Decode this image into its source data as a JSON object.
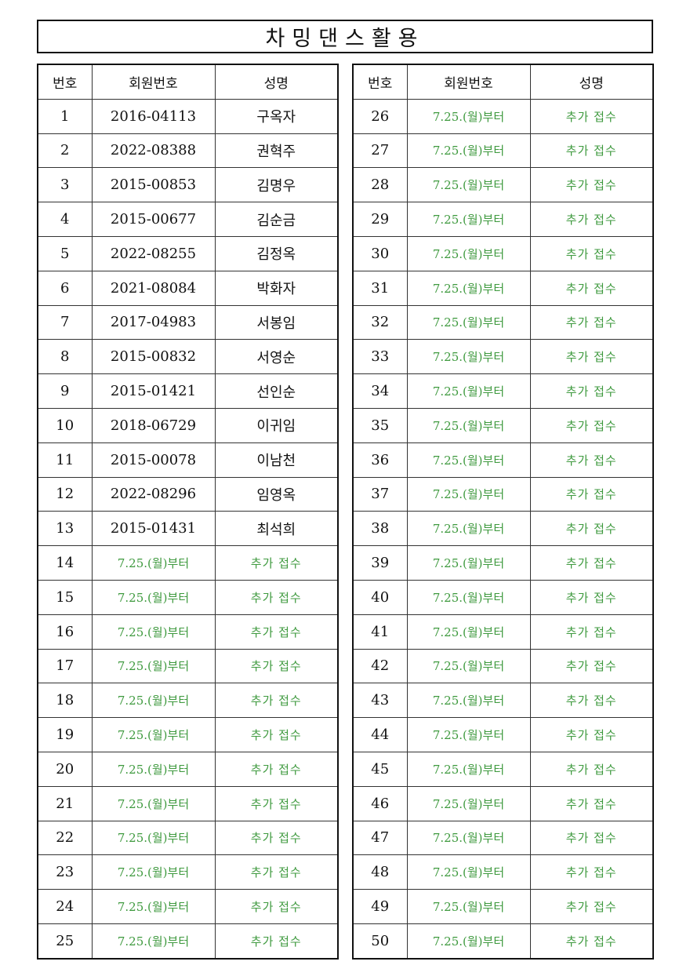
{
  "title": "차밍댄스활용",
  "colors": {
    "pending_text": "#3f9a3f",
    "border": "#111111"
  },
  "headers": {
    "no": "번호",
    "member_id": "회원번호",
    "name": "성명"
  },
  "left_rows": [
    {
      "no": "1",
      "member_id": "2016-04113",
      "name": "구옥자"
    },
    {
      "no": "2",
      "member_id": "2022-08388",
      "name": "권혁주"
    },
    {
      "no": "3",
      "member_id": "2015-00853",
      "name": "김명우"
    },
    {
      "no": "4",
      "member_id": "2015-00677",
      "name": "김순금"
    },
    {
      "no": "5",
      "member_id": "2022-08255",
      "name": "김정옥"
    },
    {
      "no": "6",
      "member_id": "2021-08084",
      "name": "박화자"
    },
    {
      "no": "7",
      "member_id": "2017-04983",
      "name": "서봉임"
    },
    {
      "no": "8",
      "member_id": "2015-00832",
      "name": "서영순"
    },
    {
      "no": "9",
      "member_id": "2015-01421",
      "name": "선인순"
    },
    {
      "no": "10",
      "member_id": "2018-06729",
      "name": "이귀임"
    },
    {
      "no": "11",
      "member_id": "2015-00078",
      "name": "이남천"
    },
    {
      "no": "12",
      "member_id": "2022-08296",
      "name": "임영옥"
    },
    {
      "no": "13",
      "member_id": "2015-01431",
      "name": "최석희"
    },
    {
      "no": "14",
      "member_id": "7.25.(월)부터",
      "name": "추가 접수",
      "pending": true
    },
    {
      "no": "15",
      "member_id": "7.25.(월)부터",
      "name": "추가 접수",
      "pending": true
    },
    {
      "no": "16",
      "member_id": "7.25.(월)부터",
      "name": "추가 접수",
      "pending": true
    },
    {
      "no": "17",
      "member_id": "7.25.(월)부터",
      "name": "추가 접수",
      "pending": true
    },
    {
      "no": "18",
      "member_id": "7.25.(월)부터",
      "name": "추가 접수",
      "pending": true
    },
    {
      "no": "19",
      "member_id": "7.25.(월)부터",
      "name": "추가 접수",
      "pending": true
    },
    {
      "no": "20",
      "member_id": "7.25.(월)부터",
      "name": "추가 접수",
      "pending": true
    },
    {
      "no": "21",
      "member_id": "7.25.(월)부터",
      "name": "추가 접수",
      "pending": true
    },
    {
      "no": "22",
      "member_id": "7.25.(월)부터",
      "name": "추가 접수",
      "pending": true
    },
    {
      "no": "23",
      "member_id": "7.25.(월)부터",
      "name": "추가 접수",
      "pending": true
    },
    {
      "no": "24",
      "member_id": "7.25.(월)부터",
      "name": "추가 접수",
      "pending": true
    },
    {
      "no": "25",
      "member_id": "7.25.(월)부터",
      "name": "추가 접수",
      "pending": true
    }
  ],
  "right_rows": [
    {
      "no": "26",
      "member_id": "7.25.(월)부터",
      "name": "추가 접수",
      "pending": true
    },
    {
      "no": "27",
      "member_id": "7.25.(월)부터",
      "name": "추가 접수",
      "pending": true
    },
    {
      "no": "28",
      "member_id": "7.25.(월)부터",
      "name": "추가 접수",
      "pending": true
    },
    {
      "no": "29",
      "member_id": "7.25.(월)부터",
      "name": "추가 접수",
      "pending": true
    },
    {
      "no": "30",
      "member_id": "7.25.(월)부터",
      "name": "추가 접수",
      "pending": true
    },
    {
      "no": "31",
      "member_id": "7.25.(월)부터",
      "name": "추가 접수",
      "pending": true
    },
    {
      "no": "32",
      "member_id": "7.25.(월)부터",
      "name": "추가 접수",
      "pending": true
    },
    {
      "no": "33",
      "member_id": "7.25.(월)부터",
      "name": "추가 접수",
      "pending": true
    },
    {
      "no": "34",
      "member_id": "7.25.(월)부터",
      "name": "추가 접수",
      "pending": true
    },
    {
      "no": "35",
      "member_id": "7.25.(월)부터",
      "name": "추가 접수",
      "pending": true
    },
    {
      "no": "36",
      "member_id": "7.25.(월)부터",
      "name": "추가 접수",
      "pending": true
    },
    {
      "no": "37",
      "member_id": "7.25.(월)부터",
      "name": "추가 접수",
      "pending": true
    },
    {
      "no": "38",
      "member_id": "7.25.(월)부터",
      "name": "추가 접수",
      "pending": true
    },
    {
      "no": "39",
      "member_id": "7.25.(월)부터",
      "name": "추가 접수",
      "pending": true
    },
    {
      "no": "40",
      "member_id": "7.25.(월)부터",
      "name": "추가 접수",
      "pending": true
    },
    {
      "no": "41",
      "member_id": "7.25.(월)부터",
      "name": "추가 접수",
      "pending": true
    },
    {
      "no": "42",
      "member_id": "7.25.(월)부터",
      "name": "추가 접수",
      "pending": true
    },
    {
      "no": "43",
      "member_id": "7.25.(월)부터",
      "name": "추가 접수",
      "pending": true
    },
    {
      "no": "44",
      "member_id": "7.25.(월)부터",
      "name": "추가 접수",
      "pending": true
    },
    {
      "no": "45",
      "member_id": "7.25.(월)부터",
      "name": "추가 접수",
      "pending": true
    },
    {
      "no": "46",
      "member_id": "7.25.(월)부터",
      "name": "추가 접수",
      "pending": true
    },
    {
      "no": "47",
      "member_id": "7.25.(월)부터",
      "name": "추가 접수",
      "pending": true
    },
    {
      "no": "48",
      "member_id": "7.25.(월)부터",
      "name": "추가 접수",
      "pending": true
    },
    {
      "no": "49",
      "member_id": "7.25.(월)부터",
      "name": "추가 접수",
      "pending": true
    },
    {
      "no": "50",
      "member_id": "7.25.(월)부터",
      "name": "추가 접수",
      "pending": true
    }
  ]
}
